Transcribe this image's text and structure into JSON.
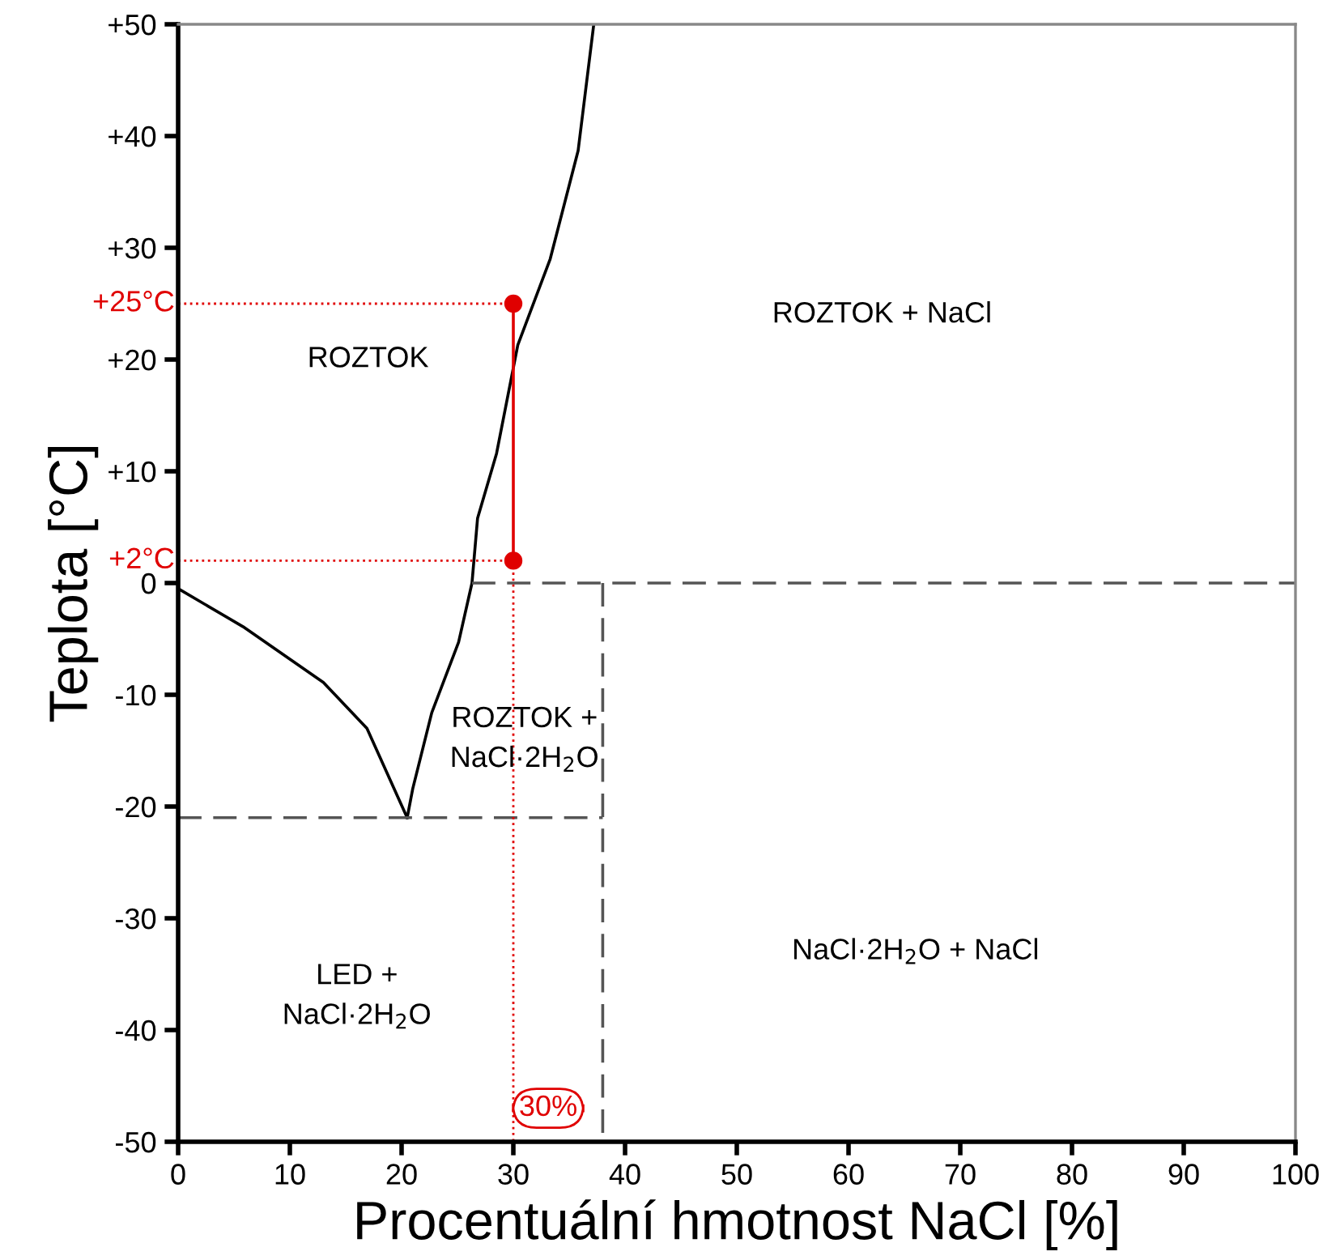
{
  "chart_data": {
    "type": "line",
    "xlabel": "Procentuální hmotnost NaCl [%]",
    "ylabel": "Teplota [°C]",
    "xlim": [
      0,
      100
    ],
    "ylim": [
      -50,
      50
    ],
    "xticks": [
      0,
      10,
      20,
      30,
      40,
      50,
      60,
      70,
      80,
      90,
      100
    ],
    "yticks": [
      {
        "value": -50,
        "label": "-50"
      },
      {
        "value": -40,
        "label": "-40"
      },
      {
        "value": -30,
        "label": "-30"
      },
      {
        "value": -20,
        "label": "-20"
      },
      {
        "value": -10,
        "label": "-10"
      },
      0,
      {
        "value": 10,
        "label": "+10"
      },
      {
        "value": 20,
        "label": "+20"
      },
      {
        "value": 30,
        "label": "+30"
      },
      {
        "value": 40,
        "label": "+40"
      },
      {
        "value": 50,
        "label": "+50"
      }
    ],
    "grid": false,
    "legend": false,
    "series": [
      {
        "color": "#000000",
        "line_style": "solid",
        "marker": "none",
        "x": [
          0,
          5.8,
          13.0,
          16.9,
          20.5
        ],
        "values": [
          -0.5,
          -3.9,
          -8.9,
          -13.0,
          -21
        ]
      },
      {
        "color": "#000000",
        "line_style": "solid",
        "marker": "none",
        "x": [
          20.5,
          21.0,
          22.7,
          25.1,
          26.3,
          26.8,
          28.5,
          30.4,
          33.3,
          35.8,
          37.2
        ],
        "values": [
          -21,
          -18.4,
          -11.6,
          -5.3,
          0,
          5.8,
          11.6,
          21.3,
          29,
          38.7,
          50
        ]
      },
      {
        "color": "#555555",
        "line_style": "dashed",
        "marker": "none",
        "x": [
          26.3,
          100
        ],
        "values": [
          0,
          0
        ]
      },
      {
        "color": "#555555",
        "line_style": "dashed",
        "marker": "none",
        "x": [
          0,
          38
        ],
        "values": [
          -21,
          -21
        ]
      },
      {
        "color": "#555555",
        "line_style": "dashed",
        "marker": "none",
        "x": [
          38,
          38
        ],
        "values": [
          0,
          -50
        ]
      },
      {
        "color": "#e00000",
        "line_style": "dotted",
        "marker": "none",
        "x": [
          0,
          30
        ],
        "values": [
          25,
          25
        ]
      },
      {
        "color": "#e00000",
        "line_style": "dotted",
        "marker": "none",
        "x": [
          0,
          30
        ],
        "values": [
          2,
          2
        ]
      },
      {
        "color": "#e00000",
        "line_style": "dotted",
        "marker": "none",
        "x": [
          30,
          30
        ],
        "values": [
          2,
          -50
        ]
      },
      {
        "color": "#e00000",
        "line_style": "solid",
        "marker": "none",
        "x": [
          30,
          30
        ],
        "values": [
          25,
          2
        ]
      },
      {
        "type": "scatter",
        "color": "#e00000",
        "marker": "circle",
        "x": [
          30,
          30
        ],
        "values": [
          25,
          2
        ]
      }
    ],
    "annotations": [
      "ROZTOK",
      "ROZTOK + NaCl",
      "ROZTOK +\nNaCl·2H$_{2}$O",
      "LED +\nNaCl·2H$_{2}$O",
      "NaCl·2H$_{2}$O + NaCl",
      "+25°C",
      "+2°C",
      "30%"
    ]
  }
}
